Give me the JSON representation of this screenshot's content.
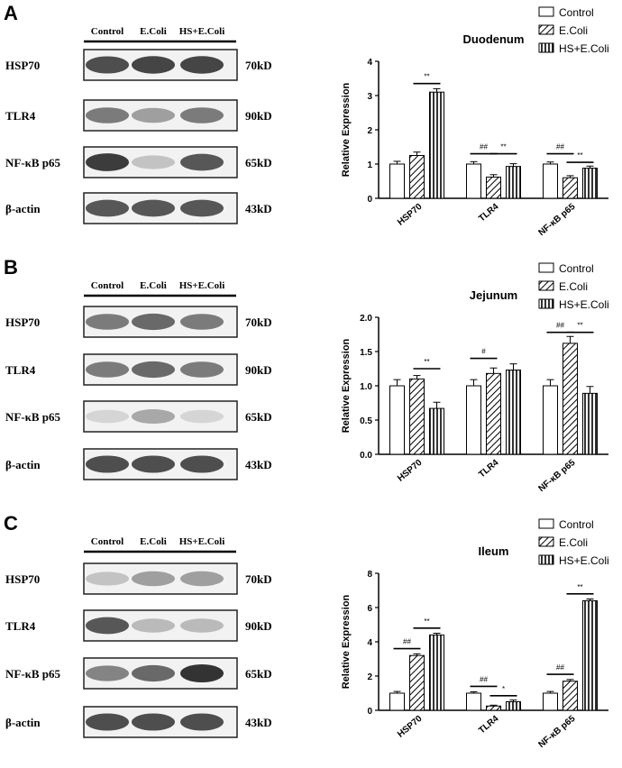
{
  "panels": [
    {
      "letter": "A",
      "blot": {
        "lanes": [
          "Control",
          "E.Coli",
          "HS+E.Coli"
        ],
        "rows": [
          {
            "protein": "HSP70",
            "size": "70kD"
          },
          {
            "protein": "TLR4",
            "size": "90kD"
          },
          {
            "protein": "NF-κB p65",
            "size": "65kD"
          },
          {
            "protein": "β-actin",
            "size": "43kD"
          }
        ]
      }
    },
    {
      "letter": "B",
      "blot": {
        "lanes": [
          "Control",
          "E.Coli",
          "HS+E.Coli"
        ],
        "rows": [
          {
            "protein": "HSP70",
            "size": "70kD"
          },
          {
            "protein": "TLR4",
            "size": "90kD"
          },
          {
            "protein": "NF-κB p65",
            "size": "65kD"
          },
          {
            "protein": "β-actin",
            "size": "43kD"
          }
        ]
      }
    },
    {
      "letter": "C",
      "blot": {
        "lanes": [
          "Control",
          "E.Coli",
          "HS+E.Coli"
        ],
        "rows": [
          {
            "protein": "HSP70",
            "size": "70kD"
          },
          {
            "protein": "TLR4",
            "size": "90kD"
          },
          {
            "protein": "NF-κB p65",
            "size": "65kD"
          },
          {
            "protein": "β-actin",
            "size": "43kD"
          }
        ]
      }
    }
  ],
  "colors": {
    "bar_fill": "#ffffff",
    "hatch": "#000000",
    "vstripe": "#000000"
  },
  "chart_data": [
    {
      "type": "bar",
      "title": "Duodenum",
      "ylabel": "Relative Expression",
      "xlabel": "",
      "categories": [
        "HSP70",
        "TLR4",
        "NF-κB p65"
      ],
      "ylim": [
        0,
        4
      ],
      "yticks": [
        "0",
        "1",
        "2",
        "3",
        "4"
      ],
      "legend": "top-right",
      "series": [
        {
          "name": "Control",
          "pattern": "open",
          "values": [
            1.0,
            1.0,
            1.0
          ],
          "errors": [
            0.08,
            0.07,
            0.06
          ]
        },
        {
          "name": "E.Coli",
          "pattern": "diagonal",
          "values": [
            1.25,
            0.62,
            0.6
          ],
          "errors": [
            0.1,
            0.07,
            0.06
          ]
        },
        {
          "name": "HS+E.Coli",
          "pattern": "vertical",
          "values": [
            3.1,
            0.93,
            0.88
          ],
          "errors": [
            0.1,
            0.08,
            0.06
          ]
        }
      ],
      "annotations": [
        {
          "text": "**",
          "category": "HSP70",
          "between": [
            1,
            2
          ],
          "y": 3.35
        },
        {
          "text": "##",
          "category": "TLR4",
          "between": [
            0,
            1
          ],
          "y": 1.3
        },
        {
          "text": "**",
          "category": "TLR4",
          "between": [
            1,
            2
          ],
          "y": 1.3
        },
        {
          "text": "##",
          "category": "NF-κB p65",
          "between": [
            0,
            1
          ],
          "y": 1.3
        },
        {
          "text": "**",
          "category": "NF-κB p65",
          "between": [
            1,
            2
          ],
          "y": 1.05
        }
      ]
    },
    {
      "type": "bar",
      "title": "Jejunum",
      "ylabel": "Relative Expression",
      "xlabel": "",
      "categories": [
        "HSP70",
        "TLR4",
        "NF-κB p65"
      ],
      "ylim": [
        0,
        2.0
      ],
      "yticks": [
        "0.0",
        "0.5",
        "1.0",
        "1.5",
        "2.0"
      ],
      "legend": "top-right",
      "series": [
        {
          "name": "Control",
          "pattern": "open",
          "values": [
            1.0,
            1.0,
            1.0
          ],
          "errors": [
            0.09,
            0.09,
            0.09
          ]
        },
        {
          "name": "E.Coli",
          "pattern": "diagonal",
          "values": [
            1.1,
            1.18,
            1.62
          ],
          "errors": [
            0.05,
            0.08,
            0.1
          ]
        },
        {
          "name": "HS+E.Coli",
          "pattern": "vertical",
          "values": [
            0.67,
            1.23,
            0.89
          ],
          "errors": [
            0.09,
            0.09,
            0.1
          ]
        }
      ],
      "annotations": [
        {
          "text": "**",
          "category": "HSP70",
          "between": [
            1,
            2
          ],
          "y": 1.25
        },
        {
          "text": "#",
          "category": "TLR4",
          "between": [
            0,
            1
          ],
          "y": 1.4
        },
        {
          "text": "##",
          "category": "NF-κB p65",
          "between": [
            0,
            1
          ],
          "y": 1.78
        },
        {
          "text": "**",
          "category": "NF-κB p65",
          "between": [
            1,
            2
          ],
          "y": 1.78
        }
      ]
    },
    {
      "type": "bar",
      "title": "Ileum",
      "ylabel": "Relative Expression",
      "xlabel": "",
      "categories": [
        "HSP70",
        "TLR4",
        "NF-κB p65"
      ],
      "ylim": [
        0,
        8
      ],
      "yticks": [
        "0",
        "2",
        "4",
        "6",
        "8"
      ],
      "legend": "top-right",
      "series": [
        {
          "name": "Control",
          "pattern": "open",
          "values": [
            1.0,
            1.0,
            1.0
          ],
          "errors": [
            0.1,
            0.08,
            0.1
          ]
        },
        {
          "name": "E.Coli",
          "pattern": "diagonal",
          "values": [
            3.2,
            0.25,
            1.7
          ],
          "errors": [
            0.1,
            0.05,
            0.1
          ]
        },
        {
          "name": "HS+E.Coli",
          "pattern": "vertical",
          "values": [
            4.4,
            0.5,
            6.4
          ],
          "errors": [
            0.1,
            0.1,
            0.1
          ]
        }
      ],
      "annotations": [
        {
          "text": "##",
          "category": "HSP70",
          "between": [
            0,
            1
          ],
          "y": 3.6
        },
        {
          "text": "**",
          "category": "HSP70",
          "between": [
            1,
            2
          ],
          "y": 4.8
        },
        {
          "text": "##",
          "category": "TLR4",
          "between": [
            0,
            1
          ],
          "y": 1.4
        },
        {
          "text": "*",
          "category": "TLR4",
          "between": [
            1,
            2
          ],
          "y": 0.85
        },
        {
          "text": "##",
          "category": "NF-κB p65",
          "between": [
            0,
            1
          ],
          "y": 2.1
        },
        {
          "text": "**",
          "category": "NF-κB p65",
          "between": [
            1,
            2
          ],
          "y": 6.8
        }
      ]
    }
  ]
}
